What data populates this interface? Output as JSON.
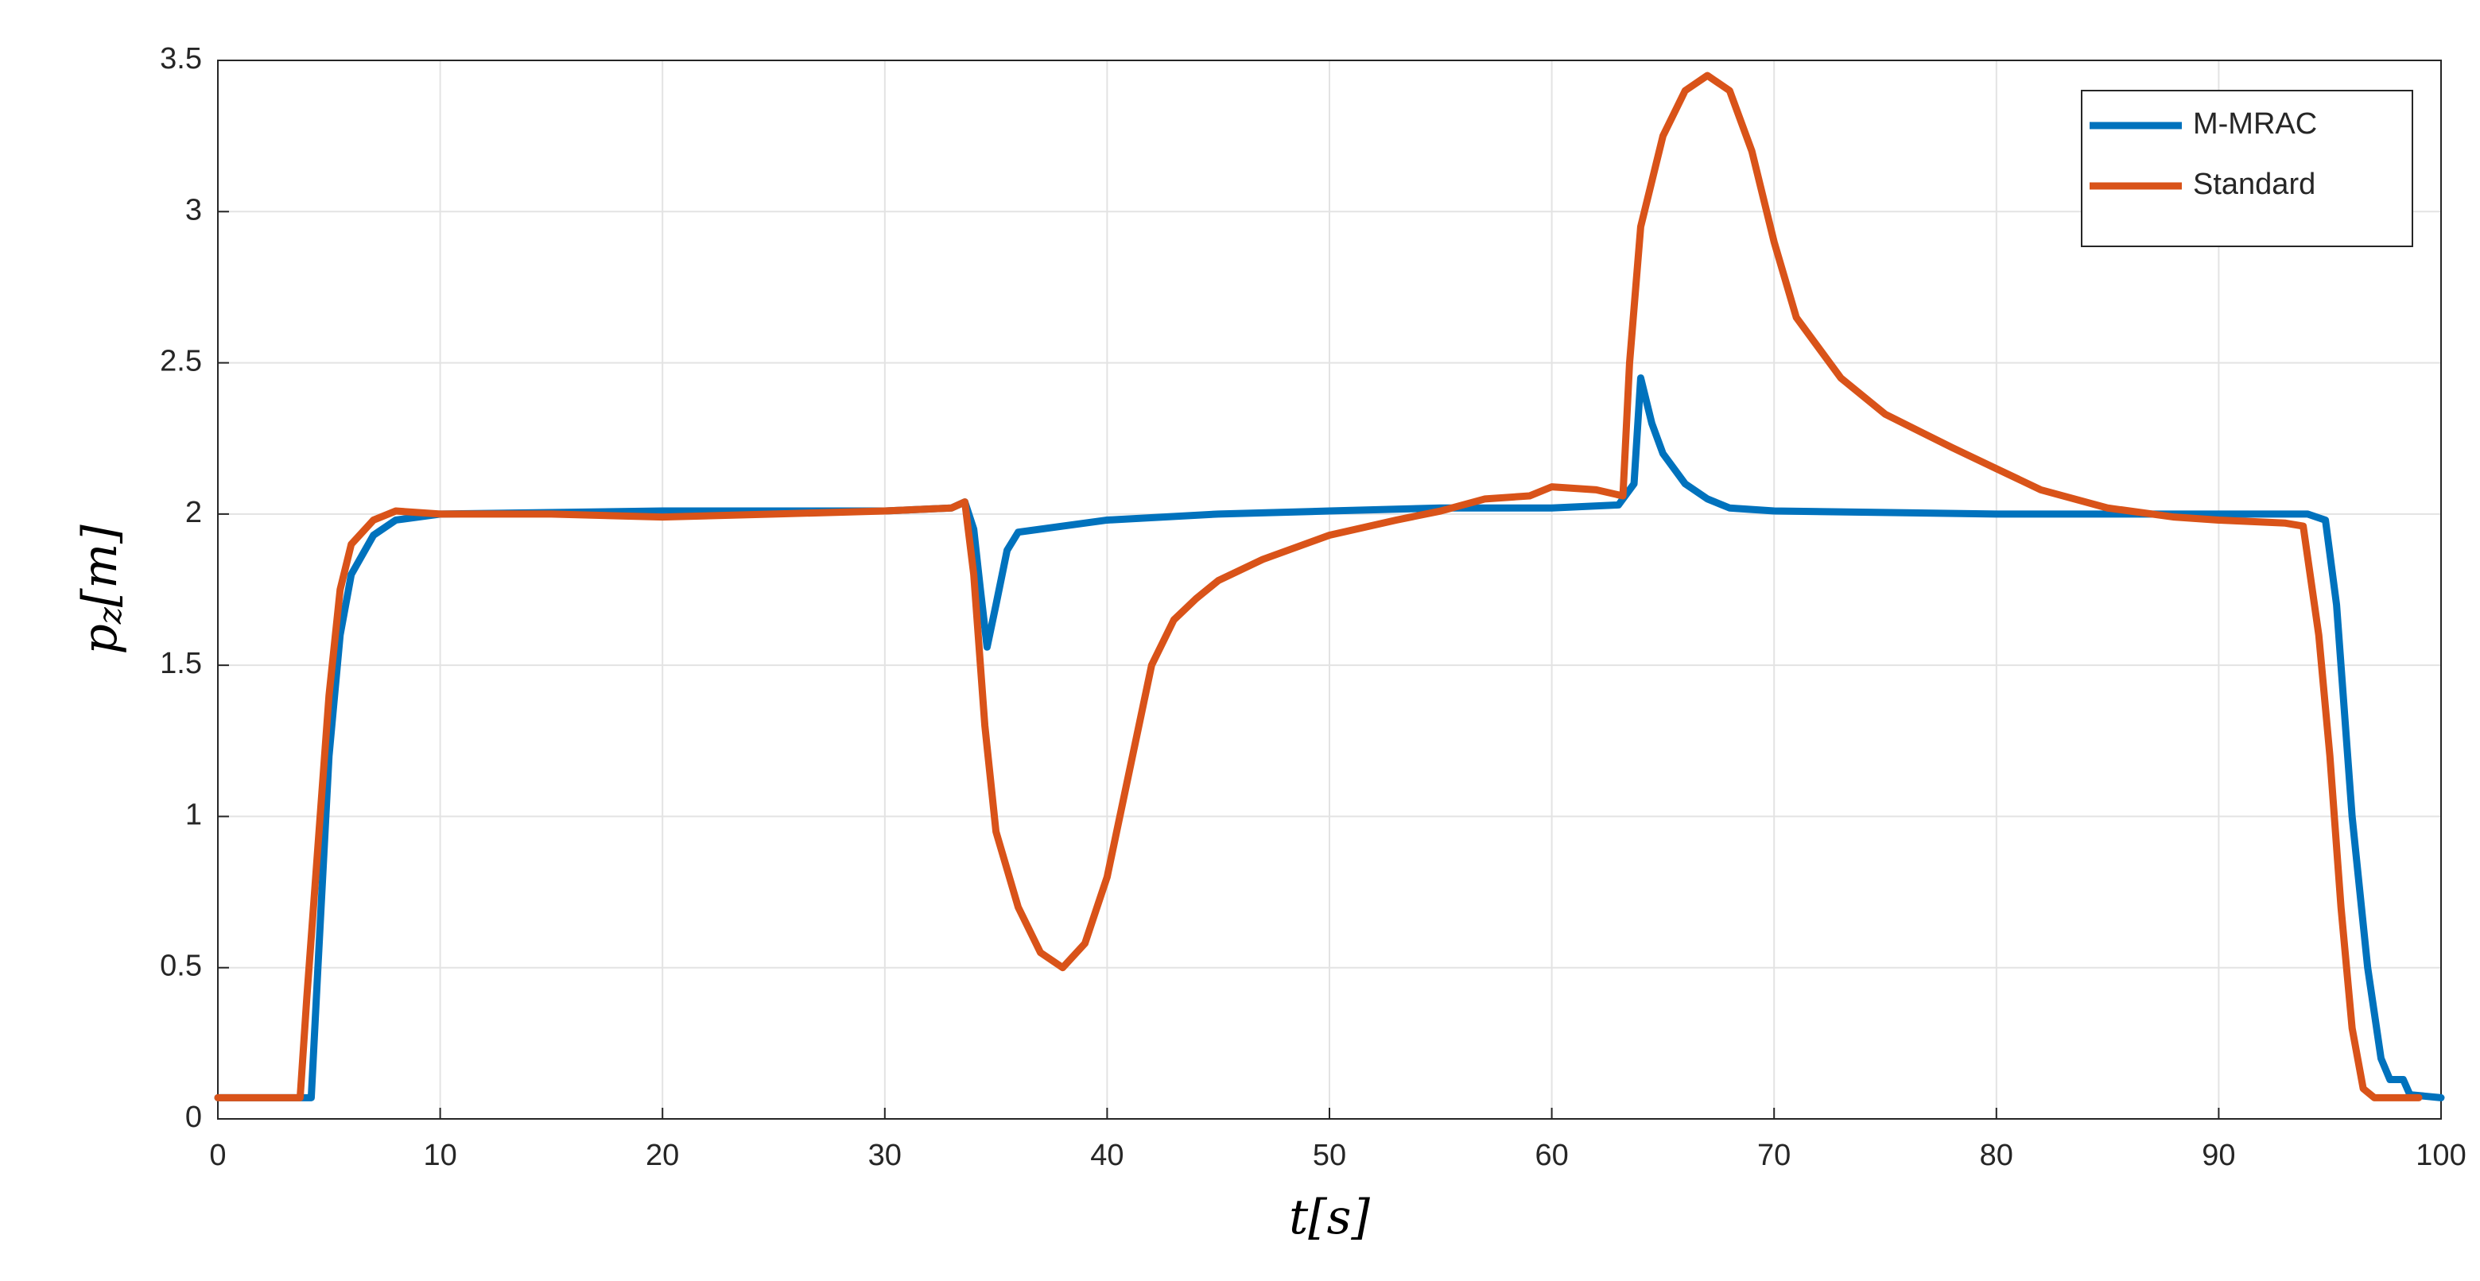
{
  "chart_data": {
    "type": "line",
    "xlabel_parts": [
      "t",
      "[s]"
    ],
    "ylabel_parts": [
      "p",
      "z",
      "[m]"
    ],
    "xlim": [
      0,
      100
    ],
    "xticks": [
      0,
      10,
      20,
      30,
      40,
      50,
      60,
      70,
      80,
      90,
      100
    ],
    "ylim": [
      0,
      3.5
    ],
    "yticks": [
      0,
      0.5,
      1,
      1.5,
      2,
      2.5,
      3,
      3.5
    ],
    "grid": true,
    "legend": "upper right",
    "series": [
      {
        "name": "M-MRAC",
        "color": "#0072bd",
        "x": [
          0,
          4.2,
          4.5,
          5,
          5.5,
          6,
          7,
          8,
          10,
          20,
          30,
          33,
          33.6,
          34,
          34.3,
          34.6,
          35,
          35.5,
          36,
          38,
          40,
          45,
          50,
          55,
          60,
          63,
          63.7,
          64,
          64.5,
          65,
          66,
          67,
          68,
          70,
          80,
          90,
          94,
          94.8,
          95.3,
          96,
          96.7,
          97.3,
          97.7,
          98.3,
          98.6,
          100
        ],
        "values": [
          0.07,
          0.07,
          0.5,
          1.2,
          1.6,
          1.8,
          1.93,
          1.98,
          2.0,
          2.01,
          2.01,
          2.02,
          2.04,
          1.95,
          1.75,
          1.56,
          1.7,
          1.88,
          1.94,
          1.96,
          1.98,
          2.0,
          2.01,
          2.02,
          2.02,
          2.03,
          2.1,
          2.45,
          2.3,
          2.2,
          2.1,
          2.05,
          2.02,
          2.01,
          2.0,
          2.0,
          2.0,
          1.98,
          1.7,
          1.0,
          0.5,
          0.2,
          0.13,
          0.13,
          0.08,
          0.07
        ]
      },
      {
        "name": "Standard",
        "color": "#d95319",
        "x": [
          0,
          3.7,
          4,
          4.5,
          5,
          5.5,
          6,
          7,
          8,
          10,
          15,
          20,
          25,
          30,
          33,
          33.6,
          34,
          34.5,
          35,
          36,
          37,
          38,
          39,
          40,
          41,
          42,
          43,
          44,
          45,
          47,
          50,
          53,
          55,
          57,
          59,
          60,
          62,
          63.2,
          63.5,
          64,
          65,
          66,
          67,
          68,
          69,
          70,
          71,
          73,
          75,
          78,
          80,
          82,
          85,
          88,
          90,
          93,
          93.8,
          94.5,
          95,
          95.5,
          96,
          96.5,
          97,
          99
        ],
        "values": [
          0.07,
          0.07,
          0.4,
          0.9,
          1.4,
          1.75,
          1.9,
          1.98,
          2.01,
          2.0,
          2.0,
          1.99,
          2.0,
          2.01,
          2.02,
          2.04,
          1.8,
          1.3,
          0.95,
          0.7,
          0.55,
          0.5,
          0.58,
          0.8,
          1.15,
          1.5,
          1.65,
          1.72,
          1.78,
          1.85,
          1.93,
          1.98,
          2.01,
          2.05,
          2.06,
          2.09,
          2.08,
          2.06,
          2.5,
          2.95,
          3.25,
          3.4,
          3.45,
          3.4,
          3.2,
          2.9,
          2.65,
          2.45,
          2.33,
          2.22,
          2.15,
          2.08,
          2.02,
          1.99,
          1.98,
          1.97,
          1.96,
          1.6,
          1.2,
          0.7,
          0.3,
          0.1,
          0.07,
          0.07
        ]
      }
    ]
  }
}
